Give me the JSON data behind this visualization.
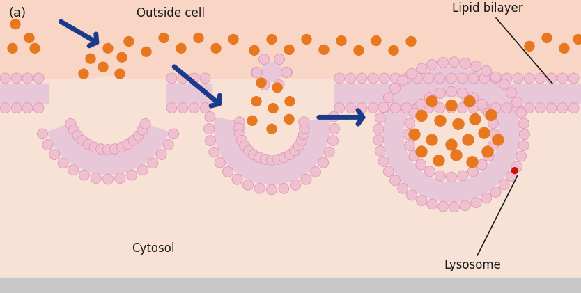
{
  "fig_width": 8.34,
  "fig_height": 4.21,
  "dpi": 100,
  "bg_color": "#f9d5c5",
  "cytosol_color": "#f5e0d5",
  "membrane_fill": "#ebbdcc",
  "head_color": "#f0c0d0",
  "head_edge": "#d898b8",
  "tail_color": "#e8c8d8",
  "orange_color": "#e87820",
  "arrow_color": "#1a3a8a",
  "text_color": "#1a1a1a",
  "gray_bar": "#c8c8c8",
  "red_dot_color": "#cc1111",
  "label_a": "(a)",
  "label_outside": "Outside cell",
  "label_cytosol": "Cytosol",
  "label_lipid": "Lipid bilayer",
  "label_lysosome": "Lysosome"
}
